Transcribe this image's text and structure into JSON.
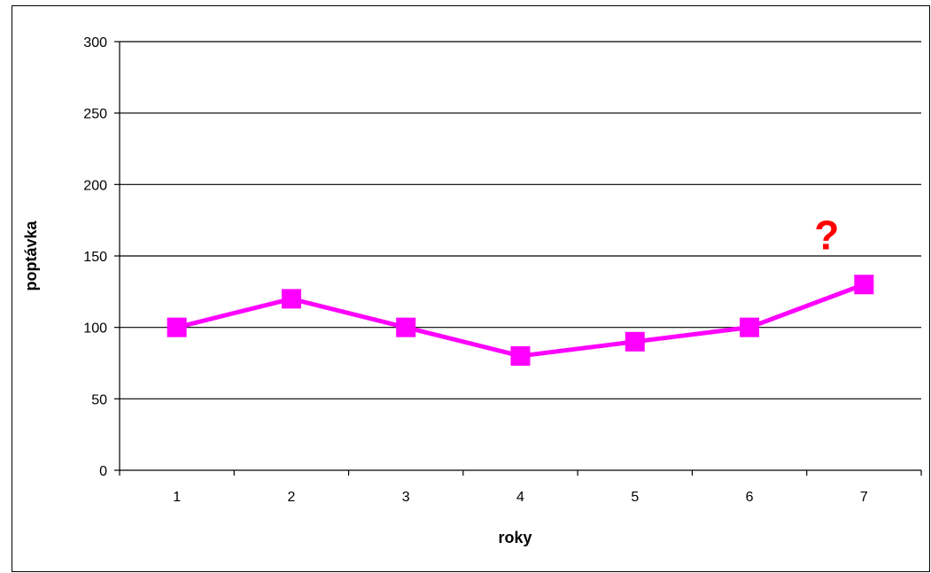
{
  "chart_data": {
    "type": "line",
    "title": "",
    "xlabel": "roky",
    "ylabel": "poptávka",
    "categories": [
      "1",
      "2",
      "3",
      "4",
      "5",
      "6",
      "7"
    ],
    "values": [
      100,
      120,
      100,
      80,
      90,
      100,
      130
    ],
    "ylim": [
      0,
      300
    ],
    "yticks": [
      "0",
      "50",
      "100",
      "150",
      "200",
      "250",
      "300"
    ],
    "grid": true,
    "legend": "none",
    "marker": "square",
    "line_color": "#FF00FF",
    "annotations": [
      {
        "text": "?",
        "category": "7",
        "color": "#FF0000"
      }
    ]
  }
}
